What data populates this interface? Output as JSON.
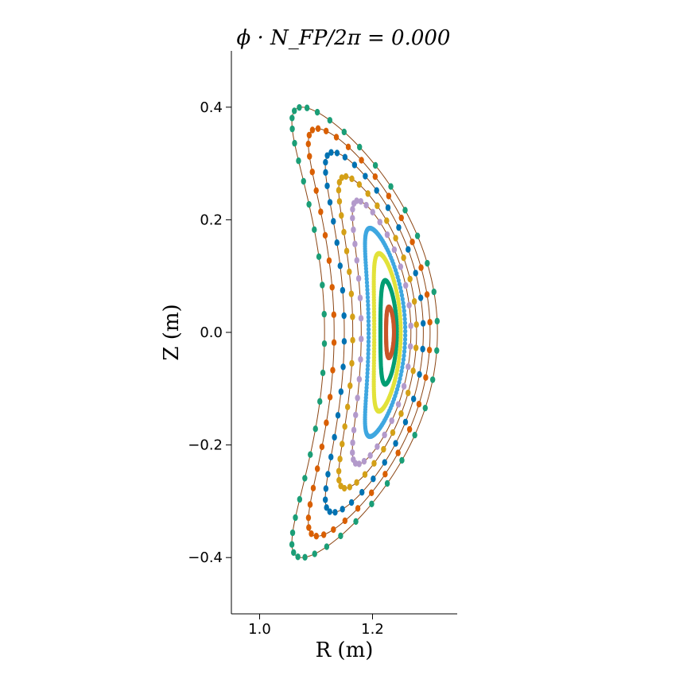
{
  "chart_data": {
    "type": "scatter",
    "title": "ϕ · N_FP/2π = 0.000",
    "xlabel": "R (m)",
    "ylabel": "Z (m)",
    "xlim": [
      0.95,
      1.35
    ],
    "ylim": [
      -0.5,
      0.5
    ],
    "x_ticks": [
      1.0,
      1.2
    ],
    "x_tick_labels": [
      "1.0",
      "1.2"
    ],
    "y_ticks": [
      0.4,
      0.2,
      0.0,
      -0.2,
      -0.4
    ],
    "y_tick_labels": [
      "0.4",
      "0.2",
      "0.0",
      "−0.2",
      "−0.4"
    ],
    "grid": false,
    "boundary_color": "#8B4513",
    "surfaces": [
      {
        "color": "#1b9e77",
        "r_in": 1.115,
        "r_out": 1.315,
        "z_max": 0.4,
        "r_top": 1.13,
        "bulge": 0.14,
        "points": 48
      },
      {
        "color": "#d95f02",
        "r_in": 1.132,
        "r_out": 1.302,
        "z_max": 0.362,
        "r_top": 1.15,
        "bulge": 0.115,
        "points": 46
      },
      {
        "color": "#0072b2",
        "r_in": 1.15,
        "r_out": 1.29,
        "z_max": 0.32,
        "r_top": 1.165,
        "bulge": 0.09,
        "points": 44
      },
      {
        "color": "#d4a017",
        "r_in": 1.165,
        "r_out": 1.278,
        "z_max": 0.277,
        "r_top": 1.185,
        "bulge": 0.07,
        "points": 42
      },
      {
        "color": "#b39acb",
        "r_in": 1.18,
        "r_out": 1.268,
        "z_max": 0.234,
        "r_top": 1.195,
        "bulge": 0.05,
        "points": 40
      },
      {
        "color": "#3fa7e0",
        "r_in": 1.193,
        "r_out": 1.258,
        "z_max": 0.185,
        "r_top": 1.205,
        "bulge": 0.03,
        "points": 160
      },
      {
        "color": "#e2e23a",
        "r_in": 1.203,
        "r_out": 1.25,
        "z_max": 0.14,
        "r_top": 1.215,
        "bulge": 0.015,
        "points": 160
      },
      {
        "color": "#009e73",
        "r_in": 1.214,
        "r_out": 1.243,
        "z_max": 0.092,
        "r_top": 1.225,
        "bulge": 0.006,
        "points": 160
      },
      {
        "color": "#c8562a",
        "r_in": 1.224,
        "r_out": 1.238,
        "z_max": 0.045,
        "r_top": 1.231,
        "bulge": 0.002,
        "points": 160
      }
    ]
  }
}
